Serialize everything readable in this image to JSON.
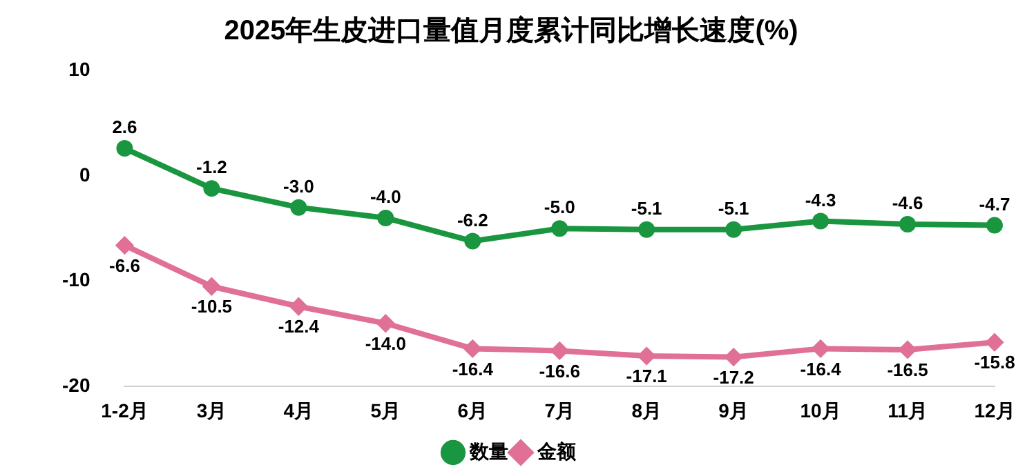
{
  "chart_data": {
    "type": "line",
    "title": "2025年生皮进口量值月度累计同比增长速度(%)",
    "categories": [
      "1-2月",
      "3月",
      "4月",
      "5月",
      "6月",
      "7月",
      "8月",
      "9月",
      "10月",
      "11月",
      "12月"
    ],
    "series": [
      {
        "name": "数量",
        "color": "#1a9641",
        "marker": "circle",
        "values": [
          2.6,
          -1.2,
          -3.0,
          -4.0,
          -6.2,
          -5.0,
          -5.1,
          -5.1,
          -4.3,
          -4.6,
          -4.7
        ],
        "value_labels": [
          "2.6",
          "-1.2",
          "-3.0",
          "-4.0",
          "-6.2",
          "-5.0",
          "-5.1",
          "-5.1",
          "-4.3",
          "-4.6",
          "-4.7"
        ]
      },
      {
        "name": "金额",
        "color": "#e07096",
        "marker": "diamond",
        "values": [
          -6.6,
          -10.5,
          -12.4,
          -14.0,
          -16.4,
          -16.6,
          -17.1,
          -17.2,
          -16.4,
          -16.5,
          -15.8
        ],
        "value_labels": [
          "-6.6",
          "-10.5",
          "-12.4",
          "-14.0",
          "-16.4",
          "-16.6",
          "-17.1",
          "-17.2",
          "-16.4",
          "-16.5",
          "-15.8"
        ]
      }
    ],
    "ylim": [
      -20,
      10
    ],
    "yticks": [
      -20,
      -10,
      0,
      10
    ],
    "grid": false,
    "legend": "bottom",
    "line_style": "solid"
  }
}
